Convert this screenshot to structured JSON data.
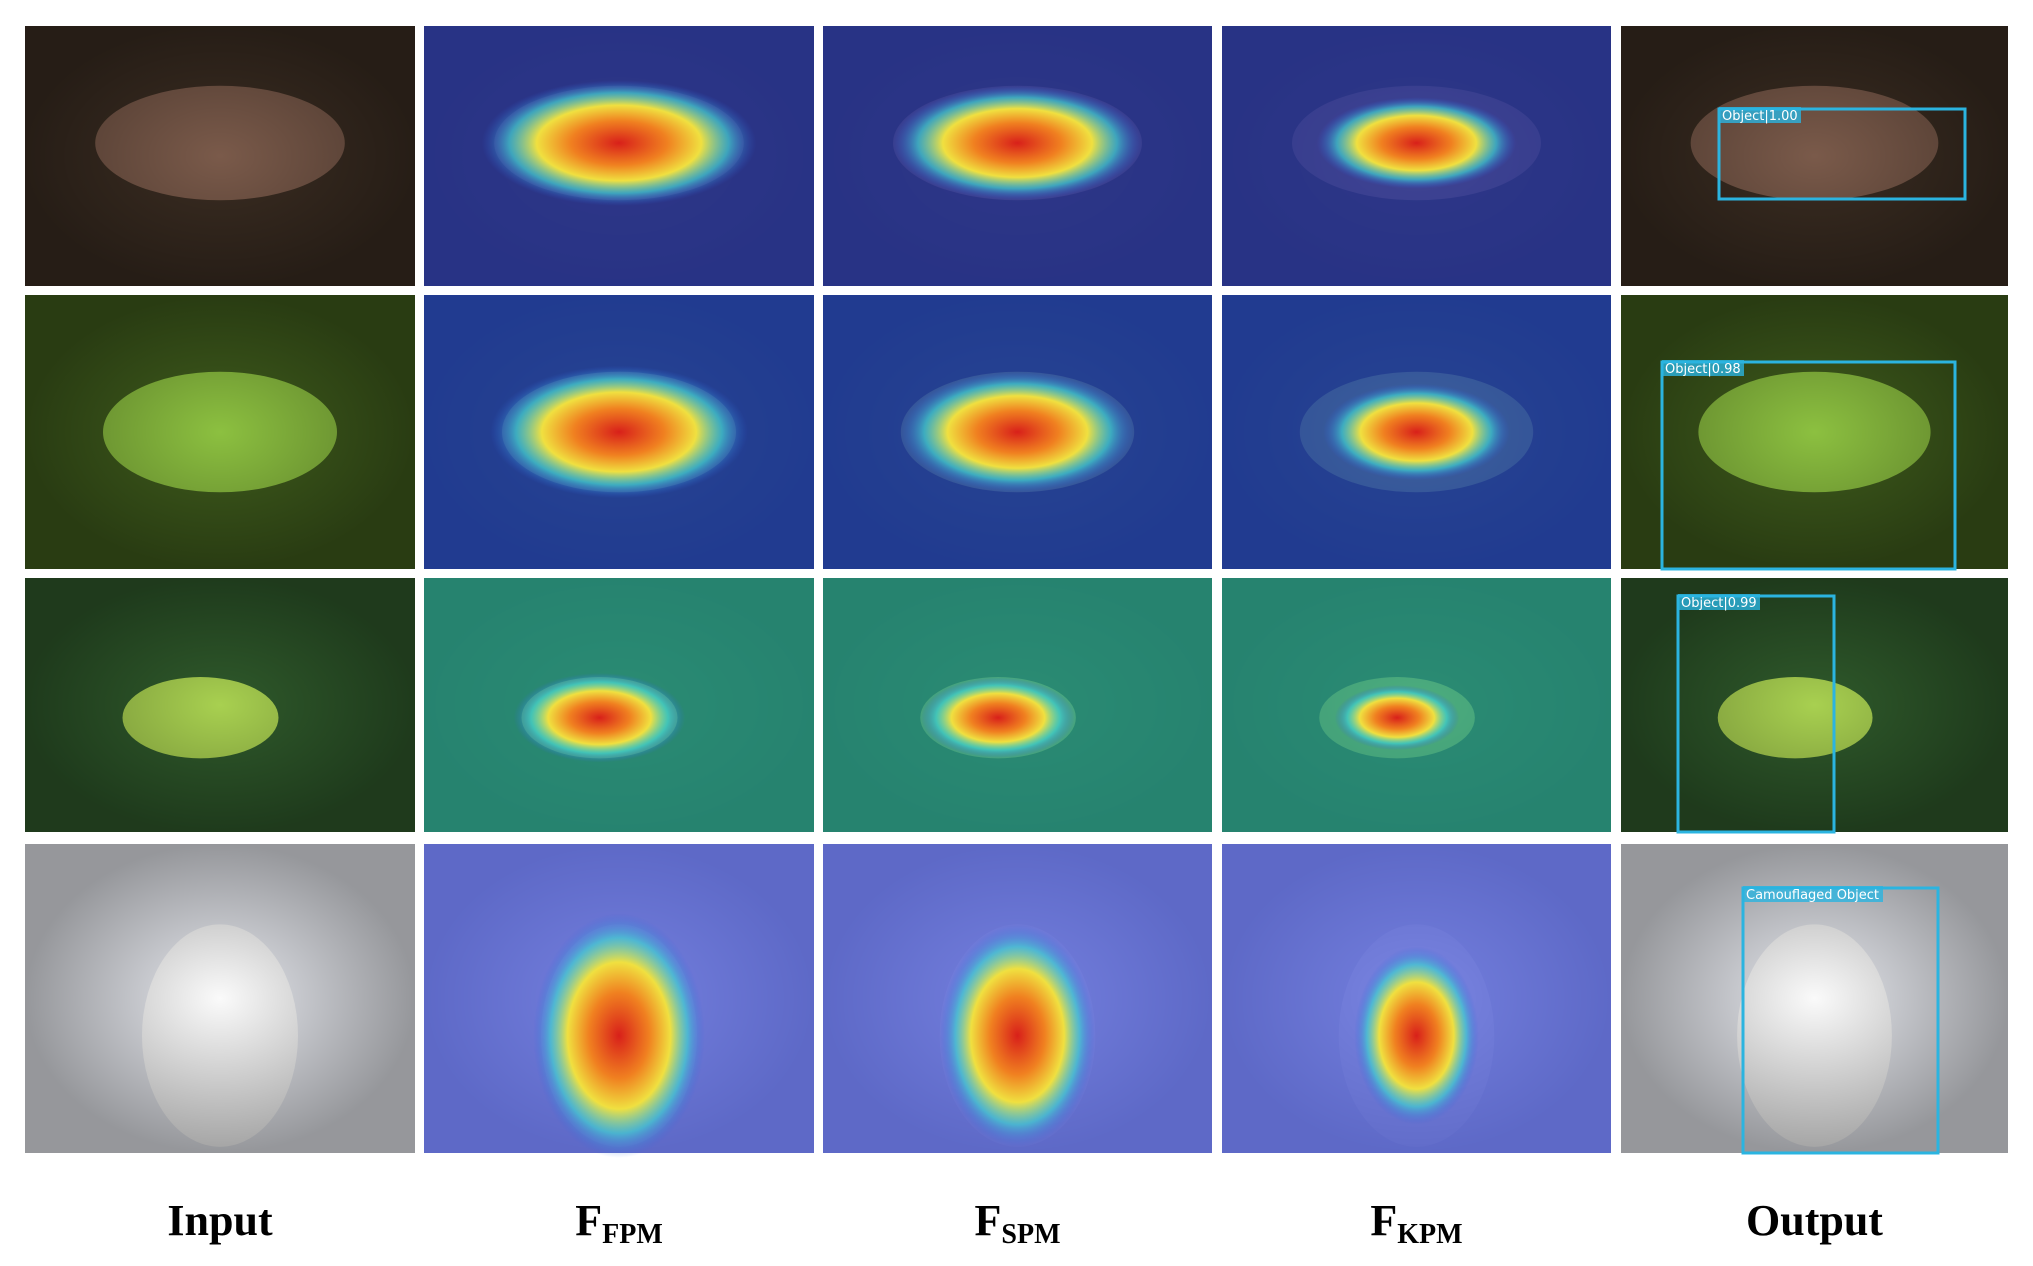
{
  "columns": [
    {
      "label": "Input"
    },
    {
      "label": "F",
      "sub": "FPM"
    },
    {
      "label": "F",
      "sub": "SPM"
    },
    {
      "label": "F",
      "sub": "KPM"
    },
    {
      "label": "Output"
    }
  ],
  "detections": [
    "Object|1.00",
    "Object|0.98",
    "Object|0.99",
    "Camouflaged Object"
  ]
}
